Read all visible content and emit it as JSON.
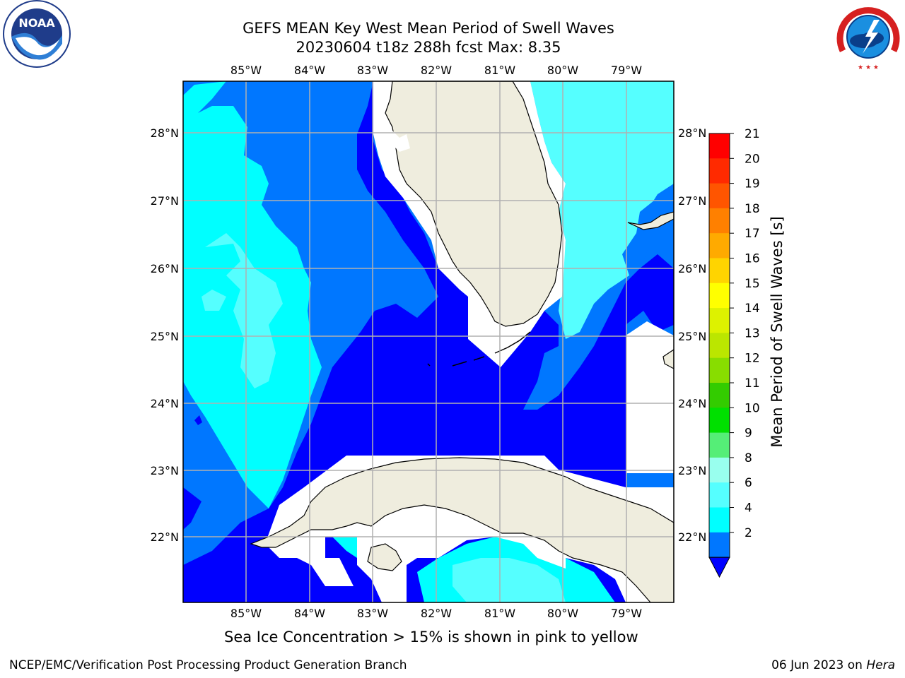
{
  "title_line1": "GEFS MEAN Key West Mean Period of Swell Waves",
  "title_line2": "20230604 t18z 288h fcst   Max: 8.35",
  "lon_labels": [
    "85°W",
    "84°W",
    "83°W",
    "82°W",
    "81°W",
    "80°W",
    "79°W"
  ],
  "lat_labels": [
    "28°N",
    "27°N",
    "26°N",
    "25°N",
    "24°N",
    "23°N",
    "22°N"
  ],
  "colorbar": {
    "label": "Mean Period of Swell Waves [s]",
    "ticks": [
      "21",
      "20",
      "19",
      "18",
      "17",
      "16",
      "15",
      "14",
      "13",
      "12",
      "11",
      "10",
      "9",
      "8",
      "6",
      "4",
      "2"
    ],
    "colors": [
      "#ff0000",
      "#ff2a00",
      "#ff5500",
      "#ff8000",
      "#ffaa00",
      "#ffd400",
      "#ffff00",
      "#ddf200",
      "#bbe600",
      "#88dd00",
      "#33cc00",
      "#00e000",
      "#55ee77",
      "#99ffee",
      "#55ffff",
      "#00ffff",
      "#0077ff"
    ],
    "extend_color": "#0000ff"
  },
  "map_colors": {
    "land": "#efedde",
    "dark_blue": "#0000ff",
    "mid_blue": "#0077ff",
    "cyan": "#00ffff",
    "light_cyan": "#55ffff",
    "grid": "#b0b0b0"
  },
  "note": "Sea Ice Concentration > 15% is shown in pink to yellow",
  "footer_left": "NCEP/EMC/Verification Post Processing Product Generation Branch",
  "footer_date": "06 Jun 2023 on ",
  "footer_machine": "Hera",
  "logos": {
    "left": "NOAA",
    "right": "NATIONAL WEATHER SERVICE"
  }
}
